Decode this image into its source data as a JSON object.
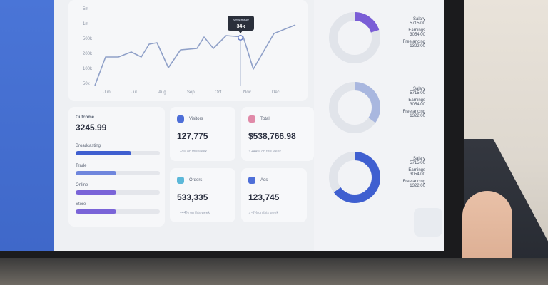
{
  "line_chart": {
    "y_ticks": [
      "5m",
      "1m",
      "500k",
      "200k",
      "100k",
      "50k"
    ],
    "x_ticks": [
      "Jun",
      "Jul",
      "Aug",
      "Sep",
      "Oct",
      "Nov",
      "Dec"
    ],
    "tooltip": {
      "month": "November",
      "value": "34k"
    }
  },
  "outcome": {
    "title": "Outcome",
    "total": "3245.99",
    "bars": [
      {
        "label": "Broadcasting",
        "value": 0.66,
        "color": "#3f5fd0"
      },
      {
        "label": "Trade",
        "value": 0.48,
        "color": "#6f86dd"
      },
      {
        "label": "Online",
        "value": 0.48,
        "color": "#7a64d8"
      },
      {
        "label": "Store",
        "value": 0.48,
        "color": "#7a64d8"
      }
    ]
  },
  "cards": {
    "visitors": {
      "title": "Visitors",
      "value": "127,775",
      "sub": "↓ -2% on this week",
      "icon_color": "#4e6fd8",
      "icon": "user-icon"
    },
    "total": {
      "title": "Total",
      "value": "$538,766.98",
      "sub": "↑ +44% on this week",
      "icon_color": "#e08aa8",
      "icon": "wallet-icon"
    },
    "orders": {
      "title": "Orders",
      "value": "533,335",
      "sub": "↑ +44% on this week",
      "icon_color": "#5cb8d9",
      "icon": "box-icon"
    },
    "ads": {
      "title": "Ads",
      "value": "123,745",
      "sub": "↓ -6% on this week",
      "icon_color": "#4e6fd8",
      "icon": "user-icon"
    }
  },
  "donuts": [
    {
      "fraction": 0.2,
      "color": "#7a5dd6",
      "legend": [
        {
          "k": "Salary",
          "v": "5715.00"
        },
        {
          "k": "Earnings",
          "v": "3054.00"
        },
        {
          "k": "Freelancing",
          "v": "1322.00"
        }
      ]
    },
    {
      "fraction": 0.35,
      "color": "#a9b7df",
      "legend": [
        {
          "k": "Salary",
          "v": "5715.00"
        },
        {
          "k": "Earnings",
          "v": "3054.00"
        },
        {
          "k": "Freelancing",
          "v": "1322.00"
        }
      ]
    },
    {
      "fraction": 0.65,
      "color": "#3f5fd0",
      "legend": [
        {
          "k": "Salary",
          "v": "5715.00"
        },
        {
          "k": "Earnings",
          "v": "3054.00"
        },
        {
          "k": "Freelancing",
          "v": "1322.00"
        }
      ]
    }
  ]
}
